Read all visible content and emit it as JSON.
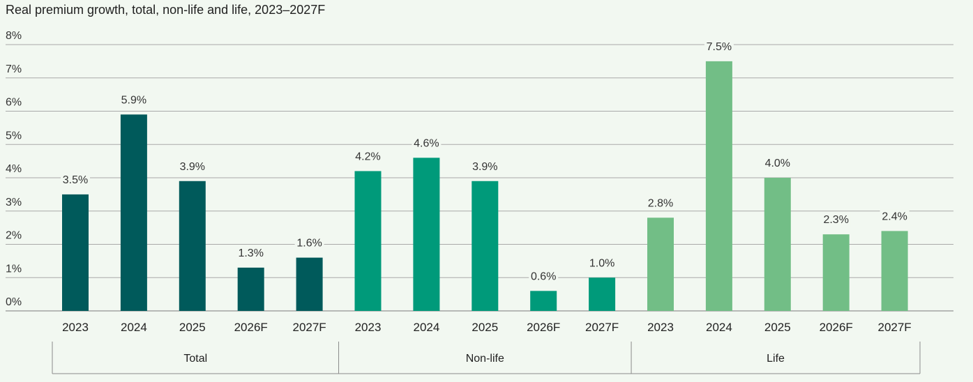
{
  "chart_data": {
    "type": "bar",
    "title": "Real premium growth, total, non-life and life, 2023–2027F",
    "xlabel": "",
    "ylabel": "",
    "ylim": [
      0,
      8
    ],
    "yticks": [
      "0%",
      "1%",
      "2%",
      "3%",
      "4%",
      "5%",
      "6%",
      "7%",
      "8%"
    ],
    "grid": true,
    "groups": [
      {
        "name": "Total",
        "color": "#005a5b",
        "categories": [
          "2023",
          "2024",
          "2025",
          "2026F",
          "2027F"
        ],
        "values": [
          3.5,
          5.9,
          3.9,
          1.3,
          1.6
        ],
        "labels": [
          "3.5%",
          "5.9%",
          "3.9%",
          "1.3%",
          "1.6%"
        ]
      },
      {
        "name": "Non-life",
        "color": "#009a7a",
        "categories": [
          "2023",
          "2024",
          "2025",
          "2026F",
          "2027F"
        ],
        "values": [
          4.2,
          4.6,
          3.9,
          0.6,
          1.0
        ],
        "labels": [
          "4.2%",
          "4.6%",
          "3.9%",
          "0.6%",
          "1.0%"
        ]
      },
      {
        "name": "Life",
        "color": "#72be86",
        "categories": [
          "2023",
          "2024",
          "2025",
          "2026F",
          "2027F"
        ],
        "values": [
          2.8,
          7.5,
          4.0,
          2.3,
          2.4
        ],
        "labels": [
          "2.8%",
          "7.5%",
          "4.0%",
          "2.3%",
          "2.4%"
        ]
      }
    ]
  }
}
